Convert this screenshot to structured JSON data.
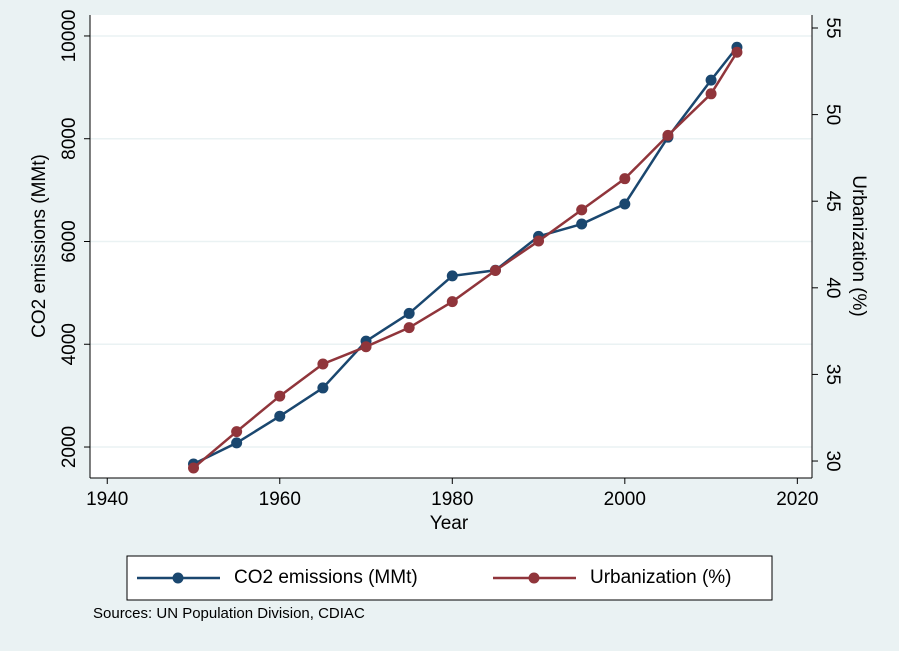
{
  "chart_data": {
    "type": "line",
    "x": [
      1950,
      1955,
      1960,
      1965,
      1970,
      1975,
      1980,
      1985,
      1990,
      1995,
      2000,
      2005,
      2010,
      2013
    ],
    "series": [
      {
        "name": "CO2 emissions (MMt)",
        "color": "#1a476f",
        "values": [
          1670,
          2080,
          2600,
          3150,
          4060,
          4600,
          5330,
          5440,
          6100,
          6340,
          6730,
          8030,
          9140,
          9780
        ]
      },
      {
        "name": "Urbanization (%)",
        "color": "#90353b",
        "axis": "y2",
        "values": [
          29.6,
          31.7,
          33.75,
          35.6,
          36.6,
          37.7,
          39.2,
          41.0,
          42.7,
          44.5,
          46.3,
          48.8,
          51.2,
          53.6
        ]
      }
    ],
    "xlabel": "Year",
    "ylabel": "CO2 emissions (MMt)",
    "y2label": "Urbanization (%)",
    "xlim": [
      1938,
      2021.7
    ],
    "xticks": [
      1940,
      1960,
      1980,
      2000,
      2020
    ],
    "ylim": [
      1397,
      10408
    ],
    "yticks": [
      2000,
      4000,
      6000,
      8000,
      10000
    ],
    "y2lim": [
      29.02,
      55.75
    ],
    "y2ticks": [
      30,
      35,
      40,
      45,
      50,
      55
    ],
    "grid": true,
    "legend": "bottom",
    "note": "Sources: UN Population Division, CDIAC"
  }
}
